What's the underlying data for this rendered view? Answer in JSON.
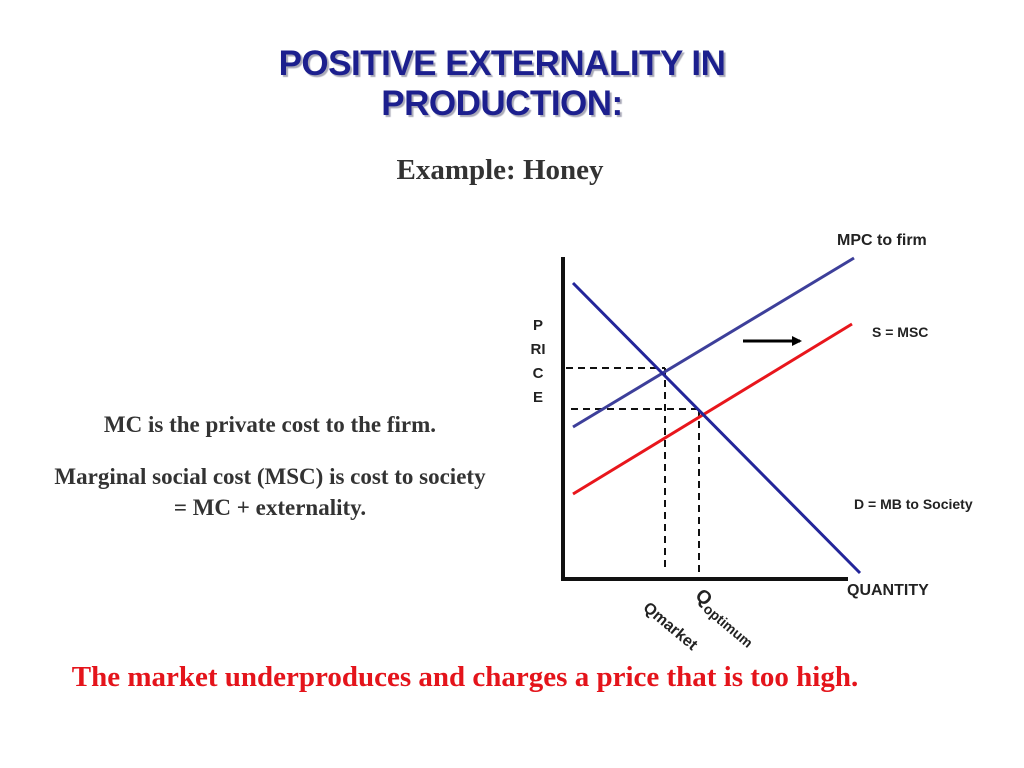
{
  "slide": {
    "title_line1": "POSITIVE EXTERNALITY IN",
    "title_line2": "PRODUCTION:",
    "subtitle": "Example:  Honey",
    "note_private_cost": "MC is the private cost to the firm.",
    "note_social_cost": "Marginal social cost (MSC) is cost to society = MC + externality.",
    "conclusion": "The market underproduces and charges a price that is too high."
  },
  "graph": {
    "y_axis_label": "PRICE",
    "y_axis_label_lines": [
      "P",
      "RI",
      "C",
      "E"
    ],
    "x_axis_label": "QUANTITY",
    "curves": {
      "mpc": "MPC to firm",
      "msc": "S = MSC",
      "demand": "D = MB to Society"
    },
    "q_market": "Qmarket",
    "q_optimum_main": "Q",
    "q_optimum_sub": "optimum",
    "colors": {
      "mpc": "#3d3f9a",
      "msc": "#e8161c",
      "demand": "#23259a",
      "axes": "#111111",
      "title": "#1c1f8e",
      "conclusion": "#e4141b"
    }
  }
}
